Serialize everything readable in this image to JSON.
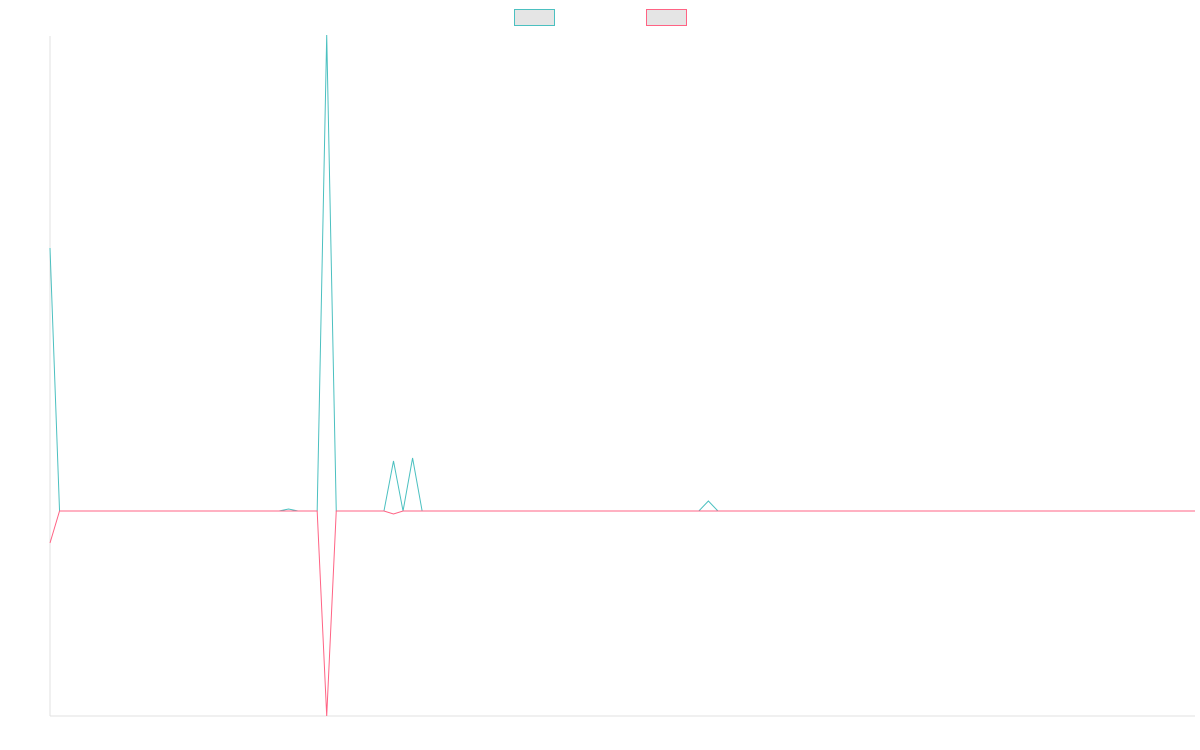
{
  "chart_data": {
    "type": "line",
    "title": "",
    "xlabel": "",
    "ylabel": "",
    "grid": false,
    "legend_position": "top-center",
    "x": [
      0,
      1,
      2,
      3,
      4,
      5,
      6,
      7,
      8,
      9,
      10,
      11,
      12,
      13,
      14,
      15,
      16,
      17,
      18,
      19,
      20,
      21,
      22,
      23,
      24,
      25,
      26,
      27,
      28,
      29,
      30,
      31,
      32,
      33,
      34,
      35,
      36,
      37,
      38,
      39,
      40,
      41,
      42,
      43,
      44,
      45,
      46,
      47,
      48,
      49,
      50,
      51,
      52,
      53,
      54,
      55,
      56,
      57,
      58,
      59,
      60,
      61,
      62,
      63,
      64,
      65,
      66,
      67,
      68,
      69,
      70,
      71,
      72,
      73,
      74,
      75,
      76,
      77,
      78,
      79,
      80,
      81,
      82,
      83,
      84,
      85,
      86,
      87,
      88,
      89,
      90,
      91,
      92,
      93,
      94,
      95,
      96,
      97,
      98,
      99,
      100,
      101,
      102,
      103,
      104,
      105,
      106,
      107,
      108,
      109,
      110,
      111,
      112,
      113,
      114,
      115,
      116,
      117,
      118,
      119,
      120
    ],
    "ylim": [
      -205,
      475
    ],
    "series": [
      {
        "color": "#4bc0c0",
        "values": [
          263,
          0,
          0,
          0,
          0,
          0,
          0,
          0,
          0,
          0,
          0,
          0,
          0,
          0,
          0,
          0,
          0,
          0,
          0,
          0,
          0,
          0,
          0,
          0,
          0,
          2,
          0,
          0,
          0,
          476,
          0,
          0,
          0,
          0,
          0,
          0,
          50,
          0,
          53,
          0,
          0,
          0,
          0,
          0,
          0,
          0,
          0,
          0,
          0,
          0,
          0,
          0,
          0,
          0,
          0,
          0,
          0,
          0,
          0,
          0,
          0,
          0,
          0,
          0,
          0,
          0,
          0,
          0,
          0,
          10,
          0,
          0,
          0,
          0,
          0,
          0,
          0,
          0,
          0,
          0,
          0,
          0,
          0,
          0,
          0,
          0,
          0,
          0,
          0,
          0,
          0,
          0,
          0,
          0,
          0,
          0,
          0,
          0,
          0,
          0,
          0,
          0,
          0,
          0,
          0,
          0,
          0,
          0,
          0,
          0,
          0,
          0,
          0,
          0,
          0,
          0,
          0,
          0,
          0,
          0,
          0
        ]
      },
      {
        "color": "#ff6384",
        "values": [
          -32,
          0,
          0,
          0,
          0,
          0,
          0,
          0,
          0,
          0,
          0,
          0,
          0,
          0,
          0,
          0,
          0,
          0,
          0,
          0,
          0,
          0,
          0,
          0,
          0,
          0,
          0,
          0,
          0,
          -205,
          0,
          0,
          0,
          0,
          0,
          0,
          -3,
          0,
          0,
          0,
          0,
          0,
          0,
          0,
          0,
          0,
          0,
          0,
          0,
          0,
          0,
          0,
          0,
          0,
          0,
          0,
          0,
          0,
          0,
          0,
          0,
          0,
          0,
          0,
          0,
          0,
          0,
          0,
          0,
          0,
          0,
          0,
          0,
          0,
          0,
          0,
          0,
          0,
          0,
          0,
          0,
          0,
          0,
          0,
          0,
          0,
          0,
          0,
          0,
          0,
          0,
          0,
          0,
          0,
          0,
          0,
          0,
          0,
          0,
          0,
          0,
          0,
          0,
          0,
          0,
          0,
          0,
          0,
          0,
          0,
          0,
          0,
          0,
          0,
          0,
          0,
          0,
          0,
          0,
          0,
          0
        ]
      }
    ],
    "legend_fill": "#e5e5e5",
    "axis_color": "#e0e0e0"
  }
}
